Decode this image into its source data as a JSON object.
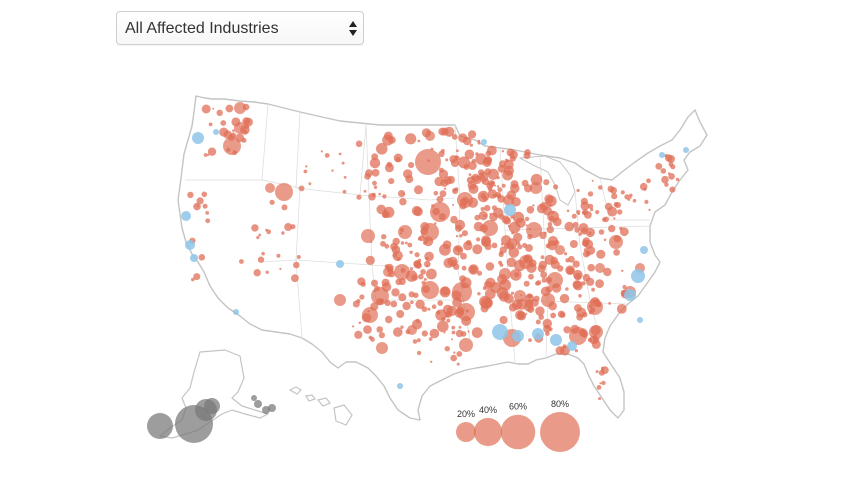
{
  "industry_select": {
    "selected": "All Affected Industries"
  },
  "legend": {
    "items": [
      {
        "label": "20%",
        "value": 20
      },
      {
        "label": "40%",
        "value": 40
      },
      {
        "label": "60%",
        "value": 60
      },
      {
        "label": "80%",
        "value": 80
      }
    ]
  },
  "colors": {
    "positive": "#e06f57",
    "negative": "#8ec5ea",
    "territory": "#777777",
    "border": "#c4c4c4",
    "state_line": "#dedede"
  },
  "icons": {
    "select": "up-down-chevron-icon"
  }
}
